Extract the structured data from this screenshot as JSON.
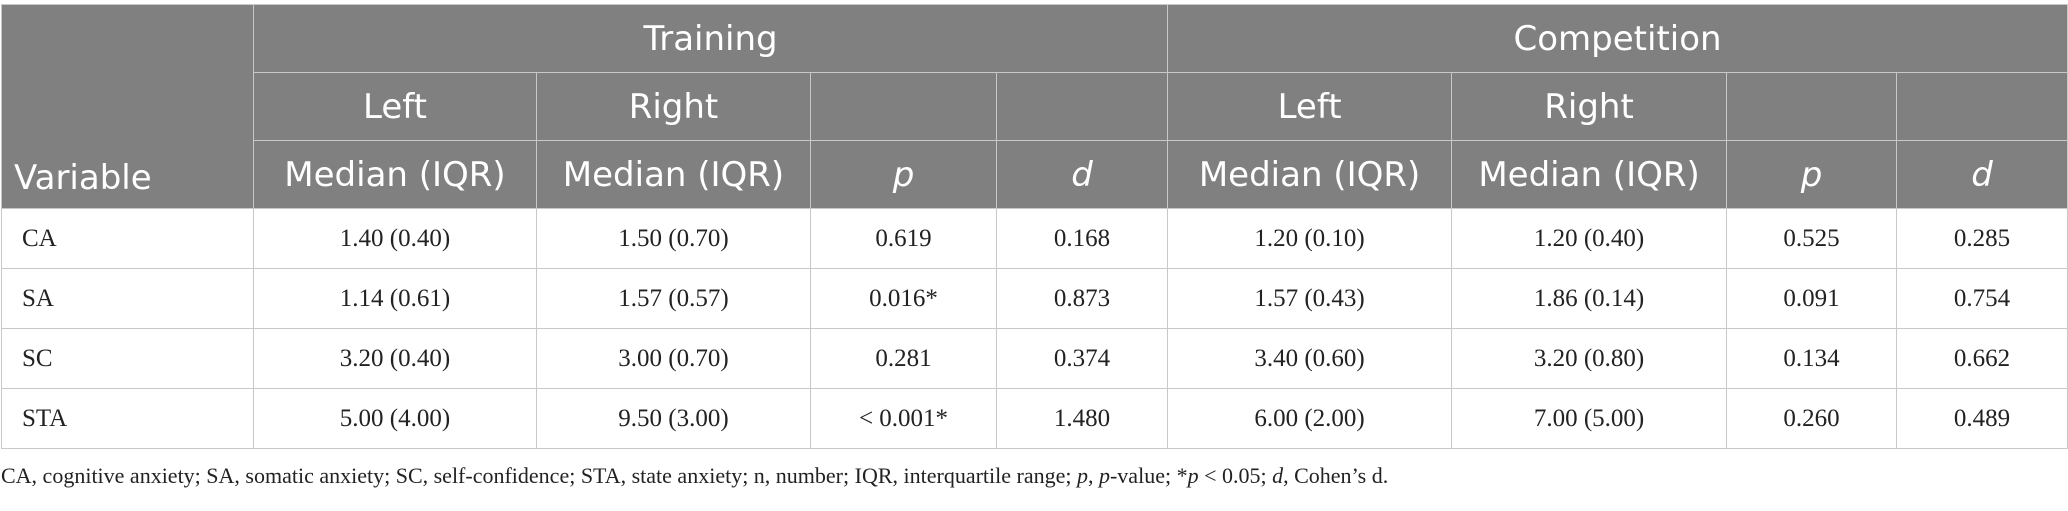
{
  "headers": {
    "variable": "Variable",
    "training": "Training",
    "competition": "Competition",
    "left": "Left",
    "right": "Right",
    "median_iqr": "Median (IQR)",
    "p": "p",
    "d": "d"
  },
  "rows": [
    {
      "variable": "CA",
      "train_left": "1.40 (0.40)",
      "train_right": "1.50 (0.70)",
      "train_p": "0.619",
      "train_d": "0.168",
      "comp_left": "1.20 (0.10)",
      "comp_right": "1.20 (0.40)",
      "comp_p": "0.525",
      "comp_d": "0.285"
    },
    {
      "variable": "SA",
      "train_left": "1.14 (0.61)",
      "train_right": "1.57 (0.57)",
      "train_p": "0.016*",
      "train_d": "0.873",
      "comp_left": "1.57 (0.43)",
      "comp_right": "1.86 (0.14)",
      "comp_p": "0.091",
      "comp_d": "0.754"
    },
    {
      "variable": "SC",
      "train_left": "3.20 (0.40)",
      "train_right": "3.00 (0.70)",
      "train_p": "0.281",
      "train_d": "0.374",
      "comp_left": "3.40 (0.60)",
      "comp_right": "3.20 (0.80)",
      "comp_p": "0.134",
      "comp_d": "0.662"
    },
    {
      "variable": "STA",
      "train_left": "5.00 (4.00)",
      "train_right": "9.50 (3.00)",
      "train_p": "< 0.001*",
      "train_d": "1.480",
      "comp_left": "6.00 (2.00)",
      "comp_right": "7.00 (5.00)",
      "comp_p": "0.260",
      "comp_d": "0.489"
    }
  ],
  "footnote": {
    "part1": "CA, cognitive anxiety; SA, somatic anxiety; SC, self-confidence; STA, state anxiety; n, number; IQR, interquartile range; ",
    "p_italic": "p",
    "part2": ", ",
    "p_italic2": "p",
    "part3": "-value; *",
    "p_italic3": "p",
    "part4": " < 0.05; ",
    "d_italic": "d",
    "part5": ", Cohen’s d."
  }
}
